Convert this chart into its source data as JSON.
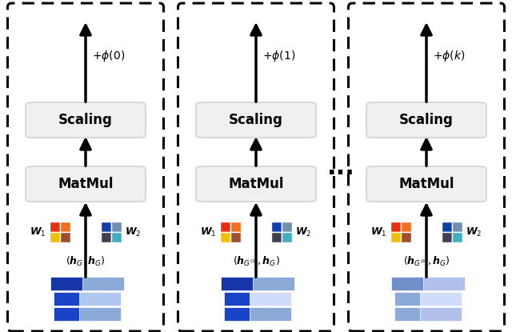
{
  "panels": [
    {
      "phi_arg": "0",
      "label_type": 0,
      "w1_colors": [
        [
          "#E83010",
          "#F07020"
        ],
        [
          "#F0C000",
          "#A05030"
        ]
      ],
      "w2_colors": [
        [
          "#1040B0",
          "#7090B0"
        ],
        [
          "#404050",
          "#40B0C0"
        ]
      ]
    },
    {
      "phi_arg": "1",
      "label_type": 1,
      "w1_colors": [
        [
          "#E83010",
          "#F07020"
        ],
        [
          "#F0C000",
          "#A05030"
        ]
      ],
      "w2_colors": [
        [
          "#1040B0",
          "#7090B0"
        ],
        [
          "#404050",
          "#40B0C0"
        ]
      ]
    },
    {
      "phi_arg": "k",
      "label_type": 2,
      "w1_colors": [
        [
          "#E83010",
          "#F07020"
        ],
        [
          "#F0C000",
          "#A05030"
        ]
      ],
      "w2_colors": [
        [
          "#1040B0",
          "#7090B0"
        ],
        [
          "#404050",
          "#40B0C0"
        ]
      ]
    }
  ],
  "background": "#ffffff"
}
